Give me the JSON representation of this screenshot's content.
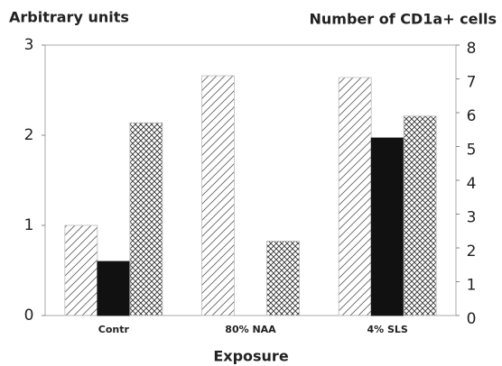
{
  "chart_data": {
    "type": "bar",
    "ylabel": "Arbitrary units",
    "y2label": "Number of CD1a+ cells",
    "xlabel": "Exposure",
    "categories": [
      "Contr",
      "80% NAA",
      "4% SLS"
    ],
    "series": [
      {
        "color": "#555555",
        "pattern": "diagonal",
        "values": [
          1.0,
          2.66,
          2.64
        ]
      },
      {
        "color": "#111111",
        "pattern": "solid",
        "values": [
          0.6,
          null,
          1.97
        ]
      },
      {
        "color": "#333333",
        "pattern": "crosshatch",
        "axis": "y2",
        "values": [
          5.7,
          2.2,
          5.9
        ]
      }
    ],
    "ylim": [
      0,
      3
    ],
    "yticks": [
      0,
      1,
      2,
      3
    ],
    "y2lim": [
      0,
      8
    ],
    "y2ticks": [
      0,
      1,
      2,
      3,
      4,
      5,
      6,
      7,
      8
    ]
  }
}
